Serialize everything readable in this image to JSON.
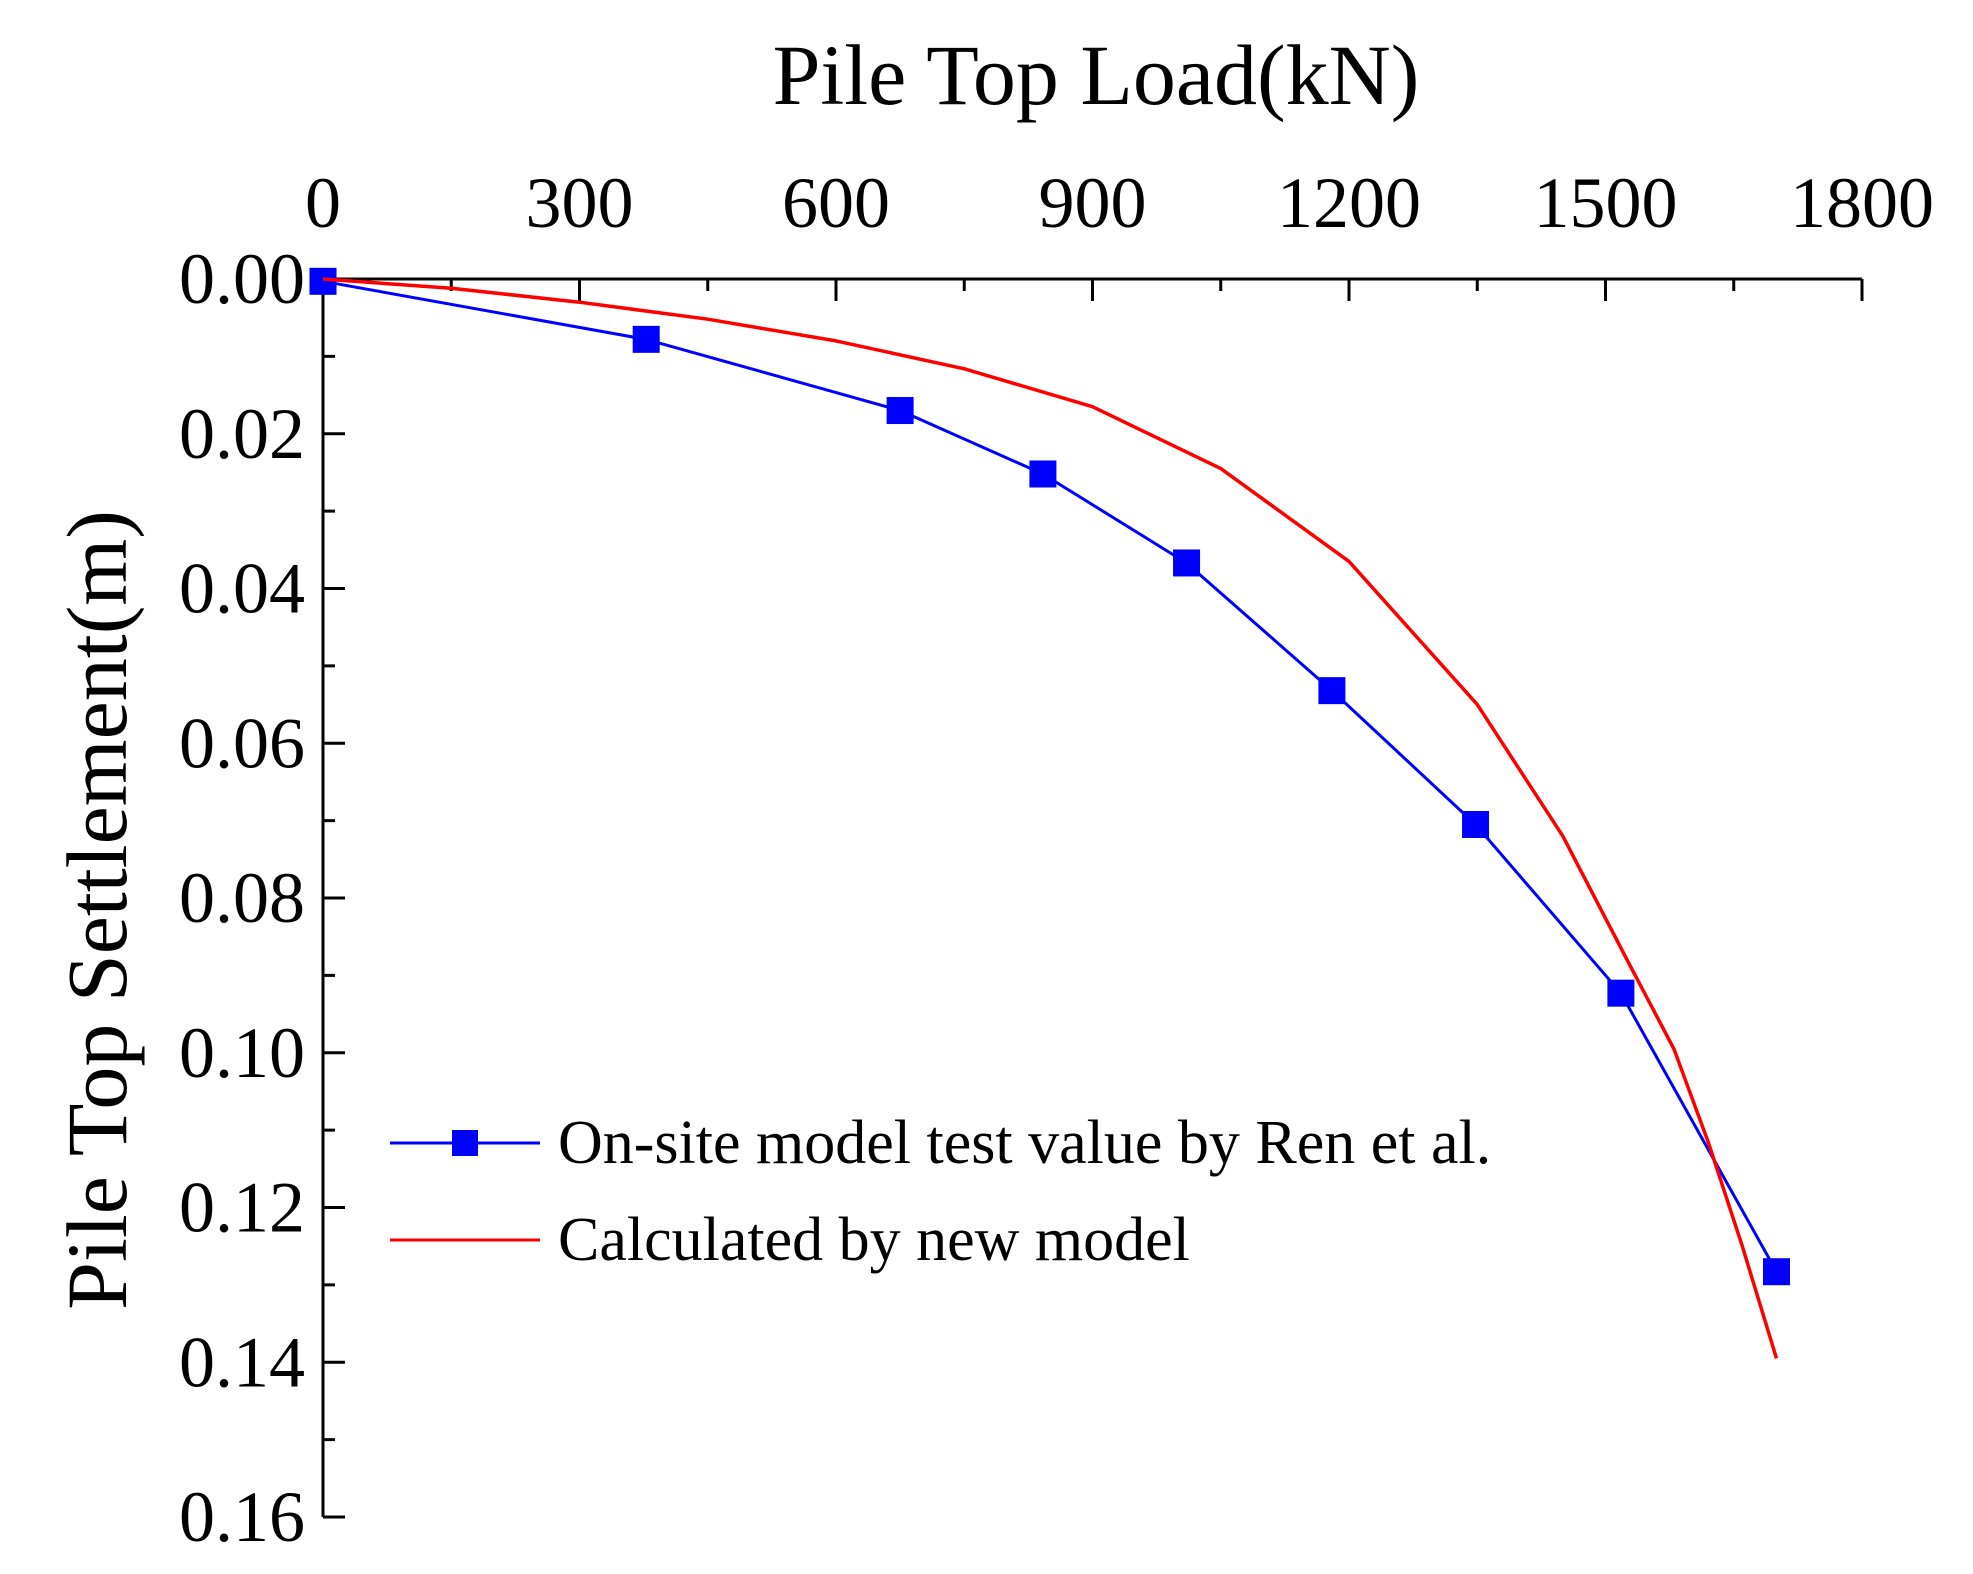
{
  "chart_data": {
    "type": "line",
    "title": "",
    "xlabel": "Pile Top Load(kN)",
    "ylabel": "Pile Top Settlement(m)",
    "xlim": [
      0,
      1800
    ],
    "ylim": [
      0,
      0.16
    ],
    "y_inverted": true,
    "x_axis_position": "top",
    "x_ticks": [
      0,
      300,
      600,
      900,
      1200,
      1500,
      1800
    ],
    "x_tick_labels": [
      "0",
      "300",
      "600",
      "900",
      "1200",
      "1500",
      "1800"
    ],
    "y_ticks": [
      0,
      0.02,
      0.04,
      0.06,
      0.08,
      0.1,
      0.12,
      0.14,
      0.16
    ],
    "y_tick_labels": [
      "0.00",
      "0.02",
      "0.04",
      "0.06",
      "0.08",
      "0.10",
      "0.12",
      "0.14",
      "0.16"
    ],
    "grid": false,
    "legend_position": "bottom-left",
    "series": [
      {
        "name": "On-site model test value by Ren et al.",
        "color": "#0000ff",
        "marker": "square",
        "x": [
          0,
          378,
          675,
          842,
          1010,
          1180,
          1348,
          1518,
          1700
        ],
        "y": [
          0.0003,
          0.0078,
          0.017,
          0.0252,
          0.0367,
          0.0532,
          0.0705,
          0.0923,
          0.1283
        ]
      },
      {
        "name": "Calculated by new model",
        "color": "#ff0000",
        "marker": "none",
        "x": [
          0,
          150,
          300,
          450,
          600,
          750,
          900,
          1050,
          1200,
          1350,
          1450,
          1530,
          1580,
          1620,
          1660,
          1700
        ],
        "y": [
          0,
          0.0012,
          0.003,
          0.0052,
          0.008,
          0.0116,
          0.0165,
          0.0245,
          0.0365,
          0.055,
          0.072,
          0.089,
          0.0995,
          0.1115,
          0.125,
          0.1395
        ]
      }
    ]
  }
}
